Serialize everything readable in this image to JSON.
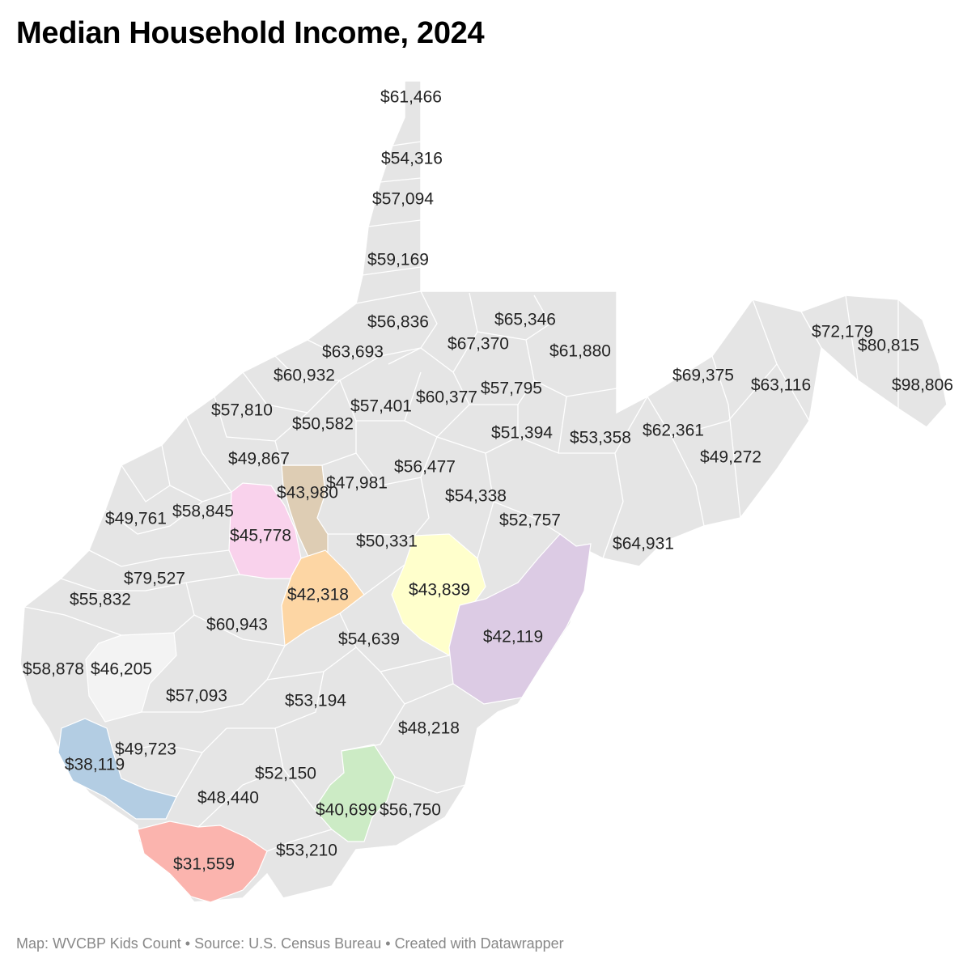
{
  "title": "Median Household Income, 2024",
  "footer": {
    "map_credit": "Map: WVCBP Kids Count",
    "source": "Source: U.S. Census Bureau",
    "created_with": "Created with Datawrapper",
    "separator": "•"
  },
  "colors": {
    "base": "#e5e5e5",
    "border": "#ffffff",
    "highlight_tan": "#decdb4",
    "highlight_pink": "#f9d2ec",
    "highlight_orange": "#fdd6a4",
    "highlight_yellow": "#ffffcc",
    "highlight_purple": "#dccbe4",
    "highlight_white": "#f3f3f3",
    "highlight_blue": "#b3cde3",
    "highlight_green": "#ccebc5",
    "highlight_red": "#fbb4ae"
  },
  "income_labels": [
    "$61,466",
    "$54,316",
    "$57,094",
    "$59,169",
    "$56,836",
    "$65,346",
    "$67,370",
    "$61,880",
    "$63,693",
    "$60,932",
    "$57,810",
    "$50,582",
    "$57,401",
    "$60,377",
    "$57,795",
    "$51,394",
    "$53,358",
    "$62,361",
    "$69,375",
    "$63,116",
    "$72,179",
    "$80,815",
    "$98,806",
    "$49,272",
    "$49,867",
    "$43,980",
    "$47,981",
    "$56,477",
    "$54,338",
    "$52,757",
    "$49,761",
    "$58,845",
    "$45,778",
    "$50,331",
    "$64,931",
    "$79,527",
    "$55,832",
    "$42,318",
    "$43,839",
    "$60,943",
    "$54,639",
    "$42,119",
    "$58,878",
    "$46,205",
    "$57,093",
    "$53,194",
    "$48,218",
    "$49,723",
    "$38,119",
    "$52,150",
    "$48,440",
    "$40,699",
    "$56,750",
    "$53,210",
    "$31,559"
  ]
}
